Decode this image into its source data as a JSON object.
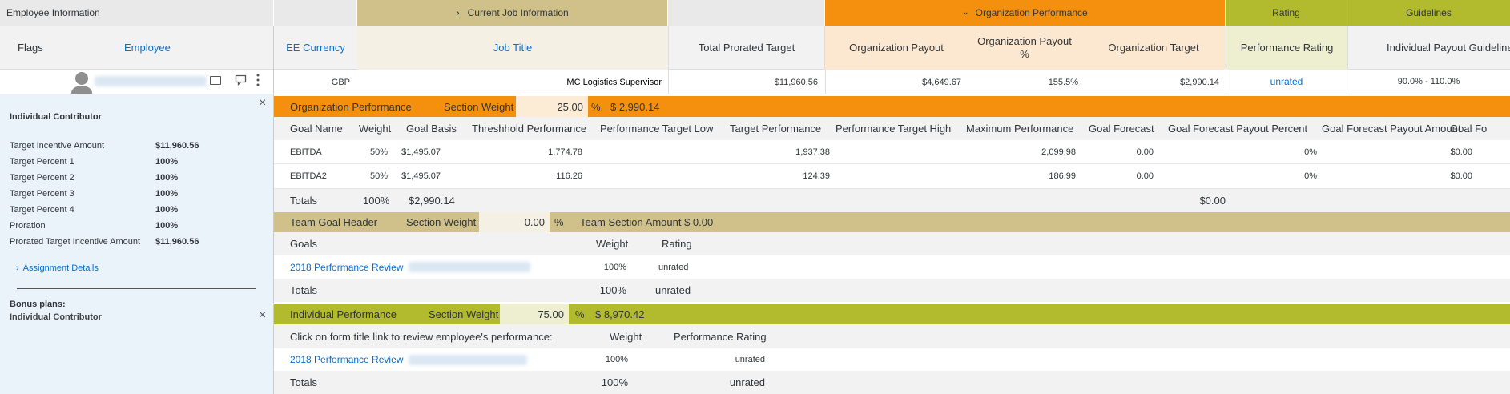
{
  "header": {
    "employee_information": "Employee Information",
    "current_job_information": "Current Job Information",
    "organization_performance": "Organization Performance",
    "rating": "Rating",
    "guidelines": "Guidelines",
    "colors": {
      "grey": "#e9e9e9",
      "olive": "#cfc189",
      "orange": "#f5900f",
      "green": "#b2ba2e"
    }
  },
  "columns": {
    "flags": "Flags",
    "employee": "Employee",
    "ee_currency": "EE Currency",
    "job_title": "Job Title",
    "total_prorated_target": "Total Prorated Target",
    "organization_payout": "Organization Payout",
    "organization_payout_pct": "Organization Payout %",
    "organization_target": "Organization Target",
    "performance_rating": "Performance Rating",
    "individual_payout_guideline": "Individual Payout Guideline"
  },
  "employee_row": {
    "currency": "GBP",
    "job_title": "MC Logistics Supervisor",
    "total_prorated_target": "$11,960.56",
    "organization_payout": "$4,649.67",
    "organization_payout_pct": "155.5%",
    "organization_target": "$2,990.14",
    "performance_rating": "unrated",
    "guideline": "90.0% - 110.0%"
  },
  "side": {
    "title": "Individual Contributor",
    "fields": [
      {
        "label": "Target Incentive Amount",
        "value": "$11,960.56"
      },
      {
        "label": "Target Percent 1",
        "value": "100%"
      },
      {
        "label": "Target Percent 2",
        "value": "100%"
      },
      {
        "label": "Target Percent 3",
        "value": "100%"
      },
      {
        "label": "Target Percent 4",
        "value": "100%"
      },
      {
        "label": "Proration",
        "value": "100%"
      },
      {
        "label": "Prorated Target Incentive Amount",
        "value": "$11,960.56"
      }
    ],
    "assignment_details": "Assignment Details",
    "bonus_plans_label": "Bonus plans:",
    "bonus_plan": "Individual Contributor",
    "close": "×"
  },
  "org_section": {
    "title": "Organization Performance",
    "weight_label": "Section Weight",
    "weight": "25.00",
    "pct": "%",
    "amount": "$ 2,990.14",
    "columns": [
      "Goal Name",
      "Weight",
      "Goal Basis",
      "Threshhold Performance",
      "Performance Target Low",
      "Target Performance",
      "Performance Target High",
      "Maximum Performance",
      "Goal Forecast",
      "Goal Forecast Payout Percent",
      "Goal Forecast Payout Amount",
      "Goal Fo"
    ],
    "rows": [
      {
        "name": "EBITDA",
        "weight": "50%",
        "basis": "$1,495.07",
        "threshold": "1,774.78",
        "target": "1,937.38",
        "maximum": "2,099.98",
        "forecast": "0.00",
        "payout_pct": "0%",
        "payout_amt": "$0.00"
      },
      {
        "name": "EBITDA2",
        "weight": "50%",
        "basis": "$1,495.07",
        "threshold": "116.26",
        "target": "124.39",
        "maximum": "186.99",
        "forecast": "0.00",
        "payout_pct": "0%",
        "payout_amt": "$0.00"
      }
    ],
    "totals": {
      "label": "Totals",
      "weight": "100%",
      "basis": "$2,990.14",
      "payout_amt": "$0.00"
    }
  },
  "team_section": {
    "title": "Team Goal Header",
    "weight_label": "Section Weight",
    "weight": "0.00",
    "pct": "%",
    "amount_label": "Team Section Amount $ 0.00",
    "columns": [
      "Goals",
      "Weight",
      "Rating"
    ],
    "row": {
      "goal": "2018 Performance Review",
      "weight": "100%",
      "rating": "unrated"
    },
    "totals": {
      "label": "Totals",
      "weight": "100%",
      "rating": "unrated"
    }
  },
  "ind_section": {
    "title": "Individual Performance",
    "weight_label": "Section Weight",
    "weight": "75.00",
    "pct": "%",
    "amount": "$ 8,970.42",
    "columns": [
      "Click on form title link to review employee's performance:",
      "Weight",
      "Performance Rating"
    ],
    "row": {
      "goal": "2018 Performance Review",
      "weight": "100%",
      "rating": "unrated"
    },
    "totals": {
      "label": "Totals",
      "weight": "100%",
      "rating": "unrated"
    }
  }
}
